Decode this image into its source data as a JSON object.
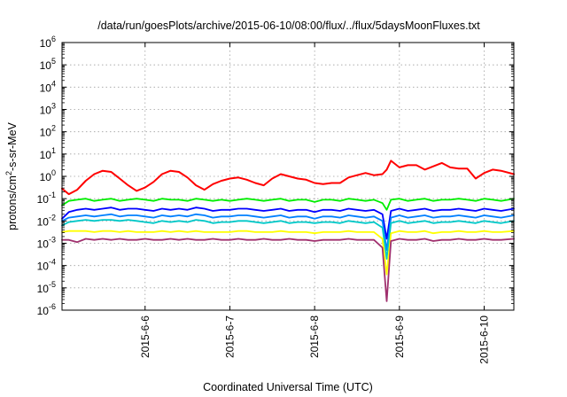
{
  "chart_data": {
    "type": "line",
    "title": "/data/run/goesPlots/archive/2015-06-10/08:00/flux/../flux/5daysMoonFluxes.txt",
    "xlabel": "Coordinated Universal Time (UTC)",
    "ylabel": {
      "base": "protons/cm",
      "sup": "2",
      "rest": "-s-sr-MeV"
    },
    "yscale": "log",
    "ylim_exponent": [
      -6,
      6
    ],
    "y_ticks": [
      {
        "base": "10",
        "exp": "6"
      },
      {
        "base": "10",
        "exp": "5"
      },
      {
        "base": "10",
        "exp": "4"
      },
      {
        "base": "10",
        "exp": "3"
      },
      {
        "base": "10",
        "exp": "2"
      },
      {
        "base": "10",
        "exp": "1"
      },
      {
        "base": "10",
        "exp": "0"
      },
      {
        "base": "10",
        "exp": "-1"
      },
      {
        "base": "10",
        "exp": "-2"
      },
      {
        "base": "10",
        "exp": "-3"
      },
      {
        "base": "10",
        "exp": "-4"
      },
      {
        "base": "10",
        "exp": "-5"
      },
      {
        "base": "10",
        "exp": "-6"
      }
    ],
    "x_unit": "days from 2015-06-05 00:00 UTC",
    "xlim": [
      0.02,
      5.35
    ],
    "x_ticks": [
      {
        "label": "2015-6-6",
        "value": 1
      },
      {
        "label": "2015-6-7",
        "value": 2
      },
      {
        "label": "2015-6-8",
        "value": 3
      },
      {
        "label": "2015-6-9",
        "value": 4
      },
      {
        "label": "2015-6-10",
        "value": 5
      }
    ],
    "grid": true,
    "x": [
      0.02,
      0.1,
      0.2,
      0.3,
      0.4,
      0.5,
      0.6,
      0.7,
      0.8,
      0.9,
      1.0,
      1.1,
      1.2,
      1.3,
      1.4,
      1.5,
      1.6,
      1.7,
      1.8,
      1.9,
      2.0,
      2.1,
      2.2,
      2.3,
      2.4,
      2.5,
      2.6,
      2.7,
      2.8,
      2.9,
      3.0,
      3.1,
      3.2,
      3.3,
      3.4,
      3.5,
      3.6,
      3.7,
      3.8,
      3.85,
      3.9,
      4.0,
      4.1,
      4.2,
      4.3,
      4.4,
      4.5,
      4.6,
      4.7,
      4.8,
      4.9,
      5.0,
      5.1,
      5.2,
      5.35
    ],
    "series": [
      {
        "color": "#ff0000",
        "log10_values": [
          -0.55,
          -0.8,
          -0.6,
          -0.2,
          0.1,
          0.25,
          0.2,
          -0.1,
          -0.4,
          -0.65,
          -0.5,
          -0.25,
          0.1,
          0.25,
          0.2,
          -0.05,
          -0.4,
          -0.6,
          -0.35,
          -0.2,
          -0.1,
          -0.05,
          -0.15,
          -0.3,
          -0.4,
          -0.1,
          0.1,
          0.0,
          -0.1,
          -0.15,
          -0.3,
          -0.35,
          -0.3,
          -0.3,
          -0.05,
          0.05,
          0.15,
          0.05,
          0.1,
          0.3,
          0.7,
          0.4,
          0.5,
          0.5,
          0.3,
          0.45,
          0.6,
          0.4,
          0.35,
          0.35,
          -0.1,
          0.15,
          0.3,
          0.25,
          0.1
        ]
      },
      {
        "color": "#00ee00",
        "log10_values": [
          -1.3,
          -1.1,
          -1.05,
          -1.0,
          -1.1,
          -1.05,
          -1.0,
          -1.1,
          -1.05,
          -1.0,
          -1.05,
          -1.1,
          -1.0,
          -1.05,
          -1.05,
          -1.1,
          -1.0,
          -1.05,
          -1.1,
          -1.05,
          -1.1,
          -1.05,
          -1.0,
          -1.05,
          -1.1,
          -1.05,
          -1.0,
          -1.1,
          -1.05,
          -1.05,
          -1.15,
          -1.05,
          -1.05,
          -1.1,
          -1.0,
          -1.05,
          -1.1,
          -1.05,
          -1.2,
          -1.5,
          -1.05,
          -1.0,
          -1.1,
          -1.05,
          -1.0,
          -1.1,
          -1.05,
          -1.05,
          -1.0,
          -1.05,
          -1.1,
          -1.0,
          -1.05,
          -1.1,
          -1.0
        ]
      },
      {
        "color": "#0000ff",
        "log10_values": [
          -1.9,
          -1.6,
          -1.5,
          -1.45,
          -1.5,
          -1.45,
          -1.4,
          -1.5,
          -1.45,
          -1.45,
          -1.5,
          -1.55,
          -1.45,
          -1.5,
          -1.45,
          -1.5,
          -1.4,
          -1.45,
          -1.55,
          -1.5,
          -1.5,
          -1.45,
          -1.45,
          -1.5,
          -1.55,
          -1.5,
          -1.45,
          -1.55,
          -1.5,
          -1.5,
          -1.6,
          -1.5,
          -1.5,
          -1.55,
          -1.45,
          -1.5,
          -1.55,
          -1.5,
          -1.7,
          -2.8,
          -1.55,
          -1.45,
          -1.55,
          -1.5,
          -1.45,
          -1.55,
          -1.5,
          -1.5,
          -1.45,
          -1.5,
          -1.55,
          -1.45,
          -1.5,
          -1.55,
          -1.45
        ]
      },
      {
        "color": "#0080ff",
        "log10_values": [
          -2.0,
          -1.85,
          -1.8,
          -1.75,
          -1.8,
          -1.75,
          -1.7,
          -1.8,
          -1.75,
          -1.75,
          -1.8,
          -1.85,
          -1.75,
          -1.8,
          -1.75,
          -1.8,
          -1.7,
          -1.75,
          -1.85,
          -1.8,
          -1.8,
          -1.75,
          -1.75,
          -1.8,
          -1.85,
          -1.8,
          -1.75,
          -1.85,
          -1.8,
          -1.8,
          -1.9,
          -1.8,
          -1.8,
          -1.85,
          -1.75,
          -1.8,
          -1.85,
          -1.8,
          -2.0,
          -3.3,
          -1.85,
          -1.75,
          -1.85,
          -1.8,
          -1.75,
          -1.85,
          -1.8,
          -1.8,
          -1.75,
          -1.8,
          -1.85,
          -1.75,
          -1.8,
          -1.85,
          -1.75
        ]
      },
      {
        "color": "#00c8c8",
        "log10_values": [
          -2.2,
          -2.05,
          -2.0,
          -1.95,
          -2.0,
          -1.95,
          -1.95,
          -2.0,
          -1.95,
          -2.0,
          -2.05,
          -2.1,
          -2.0,
          -2.05,
          -2.0,
          -2.05,
          -1.95,
          -2.0,
          -2.1,
          -2.05,
          -2.05,
          -2.0,
          -2.0,
          -2.05,
          -2.1,
          -2.05,
          -2.0,
          -2.1,
          -2.05,
          -2.05,
          -2.1,
          -2.05,
          -2.05,
          -2.1,
          -2.0,
          -2.05,
          -2.1,
          -2.05,
          -2.3,
          -3.7,
          -2.1,
          -2.0,
          -2.1,
          -2.05,
          -2.0,
          -2.1,
          -2.05,
          -2.05,
          -2.0,
          -2.05,
          -2.1,
          -2.0,
          -2.05,
          -2.1,
          -2.0
        ]
      },
      {
        "color": "#ffff00",
        "log10_values": [
          -2.5,
          -2.45,
          -2.45,
          -2.45,
          -2.5,
          -2.45,
          -2.45,
          -2.5,
          -2.45,
          -2.5,
          -2.5,
          -2.5,
          -2.45,
          -2.5,
          -2.45,
          -2.5,
          -2.45,
          -2.5,
          -2.5,
          -2.5,
          -2.5,
          -2.45,
          -2.45,
          -2.5,
          -2.5,
          -2.5,
          -2.45,
          -2.5,
          -2.5,
          -2.5,
          -2.55,
          -2.5,
          -2.5,
          -2.5,
          -2.45,
          -2.5,
          -2.5,
          -2.5,
          -2.8,
          -4.4,
          -2.55,
          -2.45,
          -2.5,
          -2.5,
          -2.45,
          -2.55,
          -2.5,
          -2.5,
          -2.45,
          -2.5,
          -2.5,
          -2.45,
          -2.5,
          -2.5,
          -2.45
        ]
      },
      {
        "color": "#a0306e",
        "log10_values": [
          -2.85,
          -2.85,
          -2.95,
          -2.8,
          -2.85,
          -2.8,
          -2.85,
          -2.8,
          -2.85,
          -2.85,
          -2.8,
          -2.85,
          -2.85,
          -2.8,
          -2.85,
          -2.8,
          -2.85,
          -2.85,
          -2.8,
          -2.85,
          -2.85,
          -2.8,
          -2.85,
          -2.85,
          -2.8,
          -2.85,
          -2.85,
          -2.8,
          -2.85,
          -2.85,
          -2.9,
          -2.85,
          -2.85,
          -2.85,
          -2.8,
          -2.85,
          -2.85,
          -2.85,
          -3.2,
          -5.6,
          -2.9,
          -2.8,
          -2.85,
          -2.85,
          -2.8,
          -2.9,
          -2.85,
          -2.85,
          -2.8,
          -2.85,
          -2.85,
          -2.8,
          -2.85,
          -2.85,
          -2.8
        ]
      }
    ]
  }
}
